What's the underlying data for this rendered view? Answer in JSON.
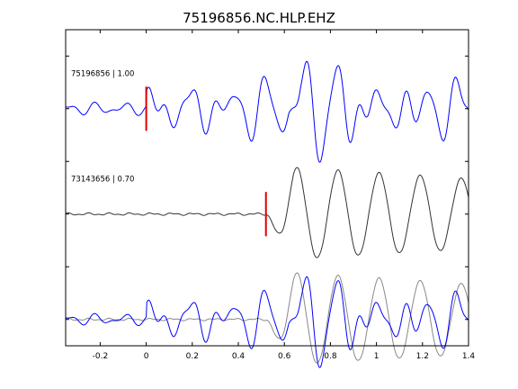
{
  "chart_data": {
    "type": "line",
    "title": "75196856.NC.HLP.EHZ",
    "xlabel": "",
    "ylabel": "",
    "xlim": [
      -0.35,
      1.4
    ],
    "ylim": [
      0,
      6
    ],
    "x_ticks": [
      -0.2,
      0,
      0.2,
      0.4,
      0.6,
      0.8,
      1,
      1.2,
      1.4
    ],
    "x_tick_labels": [
      "-0.2",
      "0",
      "0.2",
      "0.4",
      "0.6",
      "0.8",
      "1",
      "1.2",
      "1.4"
    ],
    "y_ticks": [
      0.5,
      1.5,
      2.5,
      3.5,
      4.5,
      5.5
    ],
    "grid": false,
    "legend": "none",
    "colors": {
      "primary": "#0000ff",
      "secondary": "#333333",
      "overlay_secondary": "#888888",
      "pick": "#e00000",
      "frame": "#000000"
    },
    "traces": [
      {
        "id": "trace-1",
        "label": "75196856 | 1.00",
        "color": "#0000ff",
        "baseline": 4.5,
        "pick_time": 0.0
      },
      {
        "id": "trace-2",
        "label": "73143656 | 0.70",
        "color": "#333333",
        "baseline": 2.5,
        "pick_time": 0.52
      },
      {
        "id": "overlay",
        "label": "",
        "baseline": 0.5,
        "series": [
          "trace-1-shifted",
          "trace-2"
        ]
      }
    ]
  }
}
